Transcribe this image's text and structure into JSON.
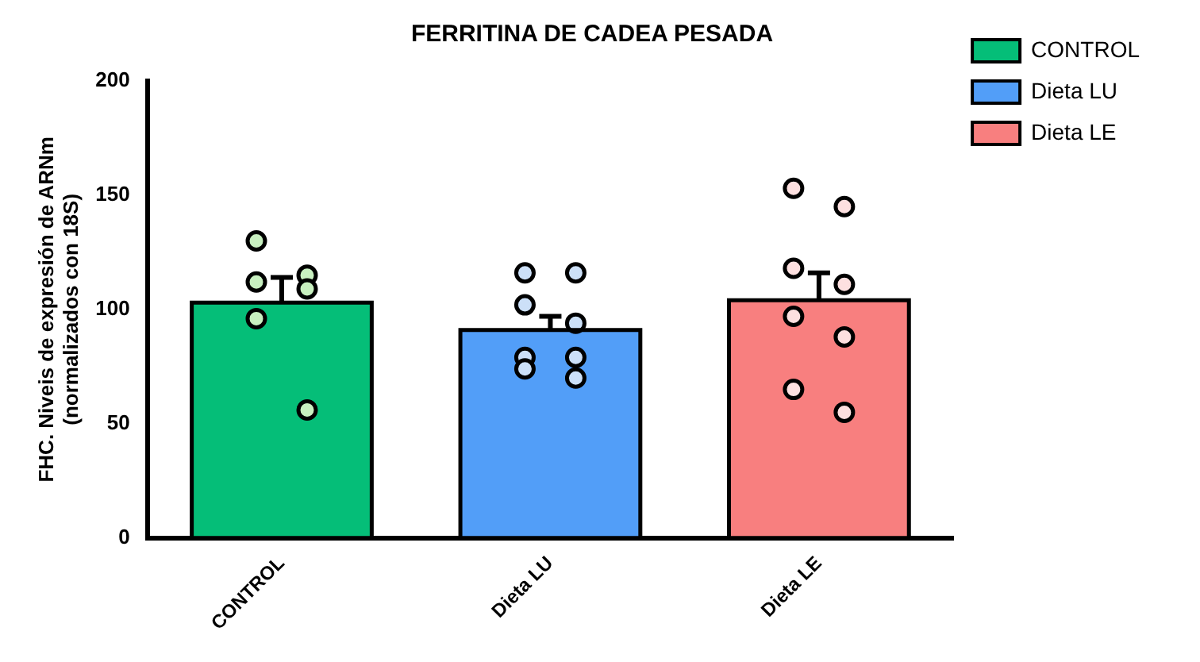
{
  "chart_data": {
    "type": "bar",
    "title": "FERRITINA DE CADEA PESADA",
    "ylabel": "FHC. Niveis de expresión de ARNm\n(normalizados con 18S)",
    "categories": [
      "CONTROL",
      "Dieta LU",
      "Dieta LE"
    ],
    "series": [
      {
        "name": "CONTROL",
        "color": "#05be78",
        "values": [
          103,
          null,
          null
        ],
        "errors": [
          [
            103,
            114
          ],
          null,
          null
        ]
      },
      {
        "name": "Dieta LU",
        "color": "#529ef8",
        "values": [
          null,
          91,
          null
        ],
        "errors": [
          null,
          [
            91,
            97
          ],
          null
        ]
      },
      {
        "name": "Dieta LE",
        "color": "#f87f7f",
        "values": [
          null,
          null,
          104
        ],
        "errors": [
          null,
          null,
          [
            104,
            116
          ]
        ]
      },
      {
        "type": "scatter",
        "color": "#c8f0c0",
        "x": [
          "CONTROL",
          "CONTROL",
          "CONTROL",
          "CONTROL",
          "CONTROL",
          "CONTROL"
        ],
        "values": [
          130,
          115,
          112,
          109,
          96,
          56
        ]
      },
      {
        "type": "scatter",
        "color": "#cce0f8",
        "x": [
          "Dieta LU",
          "Dieta LU",
          "Dieta LU",
          "Dieta LU",
          "Dieta LU",
          "Dieta LU",
          "Dieta LU",
          "Dieta LU"
        ],
        "values": [
          116,
          116,
          102,
          94,
          79,
          79,
          74,
          70
        ]
      },
      {
        "type": "scatter",
        "color": "#fde0e0",
        "x": [
          "Dieta LE",
          "Dieta LE",
          "Dieta LE",
          "Dieta LE",
          "Dieta LE",
          "Dieta LE",
          "Dieta LE",
          "Dieta LE"
        ],
        "values": [
          153,
          145,
          118,
          111,
          97,
          88,
          65,
          55
        ]
      }
    ],
    "ylim": [
      0,
      200
    ],
    "yticks": [
      0,
      50,
      100,
      150,
      200
    ],
    "grid": false,
    "legend": "top right",
    "marker": "circle"
  }
}
